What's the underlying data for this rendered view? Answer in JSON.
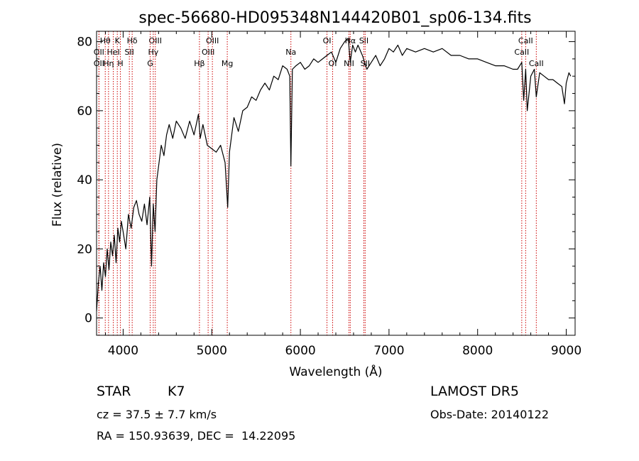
{
  "chart_data": {
    "type": "line",
    "title": "spec-56680-HD095348N144420B01_sp06-134.fits",
    "xlabel": "Wavelength (Å)",
    "ylabel": "Flux (relative)",
    "xlim": [
      3700,
      9100
    ],
    "ylim": [
      -5,
      83
    ],
    "xticks": [
      4000,
      5000,
      6000,
      7000,
      8000,
      9000
    ],
    "yticks": [
      0,
      20,
      40,
      60,
      80
    ],
    "grid": false,
    "line_color": "#000000",
    "marker_color": "#cc0000",
    "series": [
      {
        "x": [
          3700,
          3720,
          3740,
          3760,
          3780,
          3800,
          3820,
          3840,
          3860,
          3880,
          3900,
          3920,
          3940,
          3960,
          3980,
          4000,
          4030,
          4060,
          4090,
          4120,
          4150,
          4180,
          4210,
          4240,
          4270,
          4300,
          4320,
          4340,
          4360,
          4380,
          4400,
          4430,
          4460,
          4490,
          4520,
          4560,
          4600,
          4650,
          4700,
          4750,
          4800,
          4850,
          4870,
          4900,
          4950,
          5000,
          5050,
          5100,
          5150,
          5180,
          5200,
          5250,
          5300,
          5350,
          5400,
          5450,
          5500,
          5550,
          5600,
          5650,
          5700,
          5750,
          5800,
          5850,
          5880,
          5893,
          5910,
          5950,
          6000,
          6050,
          6100,
          6150,
          6200,
          6250,
          6300,
          6350,
          6400,
          6450,
          6500,
          6540,
          6563,
          6590,
          6620,
          6650,
          6700,
          6750,
          6800,
          6850,
          6900,
          6950,
          7000,
          7050,
          7100,
          7150,
          7200,
          7300,
          7400,
          7500,
          7600,
          7700,
          7800,
          7900,
          8000,
          8100,
          8200,
          8300,
          8400,
          8450,
          8498,
          8520,
          8542,
          8560,
          8600,
          8640,
          8662,
          8700,
          8750,
          8800,
          8850,
          8900,
          8950,
          8980,
          9000,
          9030,
          9050
        ],
        "y": [
          2,
          10,
          15,
          8,
          16,
          12,
          20,
          14,
          22,
          18,
          24,
          16,
          26,
          22,
          28,
          25,
          20,
          30,
          26,
          32,
          34,
          30,
          28,
          33,
          27,
          35,
          15,
          33,
          25,
          40,
          44,
          50,
          47,
          53,
          56,
          52,
          57,
          55,
          52,
          57,
          53,
          59,
          52,
          56,
          50,
          49,
          48,
          50,
          45,
          32,
          48,
          58,
          54,
          60,
          61,
          64,
          63,
          66,
          68,
          66,
          70,
          69,
          73,
          72,
          70,
          44,
          72,
          73,
          74,
          72,
          73,
          75,
          74,
          75,
          76,
          77,
          74,
          78,
          80,
          81,
          74,
          79,
          77,
          79,
          76,
          72,
          74,
          76,
          73,
          75,
          78,
          77,
          79,
          76,
          78,
          77,
          78,
          77,
          78,
          76,
          76,
          75,
          75,
          74,
          73,
          73,
          72,
          72,
          74,
          63,
          72,
          60,
          70,
          72,
          64,
          71,
          70,
          69,
          69,
          68,
          67,
          62,
          68,
          71,
          70
        ]
      }
    ],
    "spectral_lines": [
      {
        "label": "Hθ",
        "x": 3798,
        "row": 0
      },
      {
        "label": "OII",
        "x": 3727,
        "row": 1
      },
      {
        "label": "OII",
        "x": 3727,
        "row": 2
      },
      {
        "label": "K",
        "x": 3934,
        "row": 0
      },
      {
        "label": "HeI",
        "x": 3889,
        "row": 1
      },
      {
        "label": "Hη",
        "x": 3835,
        "row": 2
      },
      {
        "label": "H",
        "x": 3969,
        "row": 2
      },
      {
        "label": "Hδ",
        "x": 4102,
        "row": 0
      },
      {
        "label": "SII",
        "x": 4070,
        "row": 1
      },
      {
        "label": "OIII",
        "x": 4363,
        "row": 0
      },
      {
        "label": "Hγ",
        "x": 4340,
        "row": 1
      },
      {
        "label": "G",
        "x": 4305,
        "row": 2
      },
      {
        "label": "OIII",
        "x": 5007,
        "row": 0
      },
      {
        "label": "OIII",
        "x": 4959,
        "row": 1
      },
      {
        "label": "Hβ",
        "x": 4861,
        "row": 2
      },
      {
        "label": "Mg",
        "x": 5175,
        "row": 2
      },
      {
        "label": "Na",
        "x": 5893,
        "row": 1
      },
      {
        "label": "OI",
        "x": 6300,
        "row": 0
      },
      {
        "label": "OI",
        "x": 6364,
        "row": 2
      },
      {
        "label": "Hα",
        "x": 6563,
        "row": 0
      },
      {
        "label": "SII",
        "x": 6716,
        "row": 0
      },
      {
        "label": "NII",
        "x": 6548,
        "row": 2
      },
      {
        "label": "SII",
        "x": 6731,
        "row": 2
      },
      {
        "label": "CaII",
        "x": 8542,
        "row": 0
      },
      {
        "label": "CaII",
        "x": 8498,
        "row": 1
      },
      {
        "label": "CaII",
        "x": 8662,
        "row": 2
      }
    ]
  },
  "info": {
    "object_class": "STAR",
    "subclass": "K7",
    "cz": "cz = 37.5 ± 7.7 km/s",
    "coords": "RA = 150.93639, DEC =  14.22095",
    "survey": "LAMOST DR5",
    "obs_date": "Obs-Date: 20140122"
  }
}
